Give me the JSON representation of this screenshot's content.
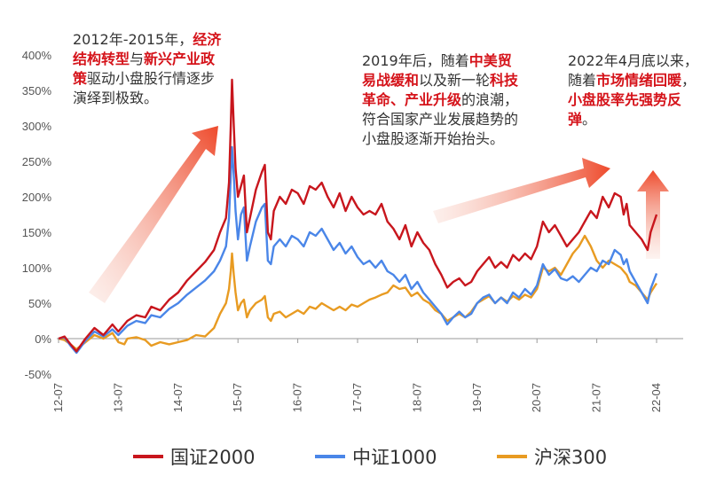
{
  "chart_data": {
    "type": "line",
    "y_ticks": [
      "400%",
      "350%",
      "300%",
      "250%",
      "200%",
      "150%",
      "100%",
      "50%",
      "0%",
      "-50%"
    ],
    "ylim": [
      -50,
      400
    ],
    "x_ticks": [
      "12-07",
      "13-07",
      "14-07",
      "15-07",
      "16-07",
      "17-07",
      "18-07",
      "19-07",
      "20-07",
      "21-07",
      "22-04"
    ],
    "legend_placement": "bottom",
    "series": [
      {
        "name": "国证2000",
        "color": "#c8161d",
        "points": [
          [
            0,
            0
          ],
          [
            0.1,
            3
          ],
          [
            0.2,
            -8
          ],
          [
            0.3,
            -18
          ],
          [
            0.45,
            0
          ],
          [
            0.6,
            15
          ],
          [
            0.75,
            5
          ],
          [
            0.9,
            20
          ],
          [
            1.0,
            10
          ],
          [
            1.15,
            25
          ],
          [
            1.3,
            33
          ],
          [
            1.45,
            30
          ],
          [
            1.55,
            45
          ],
          [
            1.7,
            40
          ],
          [
            1.85,
            55
          ],
          [
            2.0,
            65
          ],
          [
            2.15,
            82
          ],
          [
            2.3,
            95
          ],
          [
            2.45,
            108
          ],
          [
            2.6,
            125
          ],
          [
            2.7,
            150
          ],
          [
            2.8,
            170
          ],
          [
            2.85,
            220
          ],
          [
            2.88,
            300
          ],
          [
            2.9,
            365
          ],
          [
            2.93,
            300
          ],
          [
            2.96,
            240
          ],
          [
            3.0,
            200
          ],
          [
            3.05,
            215
          ],
          [
            3.1,
            230
          ],
          [
            3.15,
            150
          ],
          [
            3.2,
            170
          ],
          [
            3.3,
            210
          ],
          [
            3.4,
            235
          ],
          [
            3.45,
            245
          ],
          [
            3.5,
            150
          ],
          [
            3.55,
            140
          ],
          [
            3.6,
            180
          ],
          [
            3.7,
            200
          ],
          [
            3.8,
            190
          ],
          [
            3.9,
            210
          ],
          [
            4.0,
            205
          ],
          [
            4.1,
            190
          ],
          [
            4.2,
            215
          ],
          [
            4.3,
            210
          ],
          [
            4.4,
            220
          ],
          [
            4.5,
            200
          ],
          [
            4.6,
            185
          ],
          [
            4.7,
            205
          ],
          [
            4.8,
            180
          ],
          [
            4.9,
            200
          ],
          [
            5.0,
            185
          ],
          [
            5.1,
            175
          ],
          [
            5.2,
            180
          ],
          [
            5.3,
            175
          ],
          [
            5.4,
            190
          ],
          [
            5.5,
            165
          ],
          [
            5.6,
            155
          ],
          [
            5.7,
            140
          ],
          [
            5.8,
            160
          ],
          [
            5.9,
            130
          ],
          [
            6.0,
            150
          ],
          [
            6.1,
            135
          ],
          [
            6.2,
            125
          ],
          [
            6.3,
            105
          ],
          [
            6.4,
            90
          ],
          [
            6.5,
            72
          ],
          [
            6.6,
            80
          ],
          [
            6.7,
            85
          ],
          [
            6.8,
            75
          ],
          [
            6.9,
            80
          ],
          [
            7.0,
            95
          ],
          [
            7.1,
            105
          ],
          [
            7.2,
            115
          ],
          [
            7.3,
            100
          ],
          [
            7.4,
            108
          ],
          [
            7.5,
            100
          ],
          [
            7.6,
            118
          ],
          [
            7.7,
            110
          ],
          [
            7.8,
            120
          ],
          [
            7.9,
            112
          ],
          [
            8.0,
            130
          ],
          [
            8.1,
            165
          ],
          [
            8.2,
            150
          ],
          [
            8.3,
            160
          ],
          [
            8.4,
            145
          ],
          [
            8.5,
            130
          ],
          [
            8.6,
            140
          ],
          [
            8.7,
            150
          ],
          [
            8.8,
            165
          ],
          [
            8.9,
            180
          ],
          [
            9.0,
            170
          ],
          [
            9.1,
            200
          ],
          [
            9.2,
            185
          ],
          [
            9.3,
            205
          ],
          [
            9.4,
            200
          ],
          [
            9.45,
            175
          ],
          [
            9.5,
            190
          ],
          [
            9.55,
            160
          ],
          [
            9.65,
            150
          ],
          [
            9.75,
            140
          ],
          [
            9.85,
            125
          ],
          [
            9.9,
            150
          ],
          [
            10.0,
            175
          ]
        ]
      },
      {
        "name": "中证1000",
        "color": "#4a86e8",
        "points": [
          [
            0,
            0
          ],
          [
            0.1,
            2
          ],
          [
            0.2,
            -10
          ],
          [
            0.3,
            -20
          ],
          [
            0.45,
            -3
          ],
          [
            0.6,
            10
          ],
          [
            0.75,
            3
          ],
          [
            0.9,
            13
          ],
          [
            1.0,
            5
          ],
          [
            1.15,
            18
          ],
          [
            1.3,
            25
          ],
          [
            1.45,
            22
          ],
          [
            1.55,
            33
          ],
          [
            1.7,
            30
          ],
          [
            1.85,
            42
          ],
          [
            2.0,
            50
          ],
          [
            2.15,
            62
          ],
          [
            2.3,
            72
          ],
          [
            2.45,
            82
          ],
          [
            2.6,
            95
          ],
          [
            2.7,
            110
          ],
          [
            2.8,
            130
          ],
          [
            2.85,
            170
          ],
          [
            2.88,
            230
          ],
          [
            2.9,
            270
          ],
          [
            2.93,
            230
          ],
          [
            2.96,
            180
          ],
          [
            3.0,
            140
          ],
          [
            3.05,
            175
          ],
          [
            3.1,
            185
          ],
          [
            3.15,
            110
          ],
          [
            3.2,
            130
          ],
          [
            3.3,
            165
          ],
          [
            3.4,
            185
          ],
          [
            3.45,
            190
          ],
          [
            3.5,
            110
          ],
          [
            3.55,
            105
          ],
          [
            3.6,
            130
          ],
          [
            3.7,
            140
          ],
          [
            3.8,
            130
          ],
          [
            3.9,
            145
          ],
          [
            4.0,
            140
          ],
          [
            4.1,
            130
          ],
          [
            4.2,
            150
          ],
          [
            4.3,
            145
          ],
          [
            4.4,
            155
          ],
          [
            4.5,
            140
          ],
          [
            4.6,
            125
          ],
          [
            4.7,
            135
          ],
          [
            4.8,
            120
          ],
          [
            4.9,
            130
          ],
          [
            5.0,
            115
          ],
          [
            5.1,
            105
          ],
          [
            5.2,
            110
          ],
          [
            5.3,
            100
          ],
          [
            5.4,
            110
          ],
          [
            5.5,
            95
          ],
          [
            5.6,
            90
          ],
          [
            5.7,
            80
          ],
          [
            5.8,
            90
          ],
          [
            5.9,
            70
          ],
          [
            6.0,
            80
          ],
          [
            6.1,
            65
          ],
          [
            6.2,
            55
          ],
          [
            6.3,
            45
          ],
          [
            6.4,
            35
          ],
          [
            6.5,
            20
          ],
          [
            6.6,
            30
          ],
          [
            6.7,
            38
          ],
          [
            6.8,
            30
          ],
          [
            6.9,
            35
          ],
          [
            7.0,
            50
          ],
          [
            7.1,
            58
          ],
          [
            7.2,
            62
          ],
          [
            7.3,
            50
          ],
          [
            7.4,
            58
          ],
          [
            7.5,
            50
          ],
          [
            7.6,
            65
          ],
          [
            7.7,
            58
          ],
          [
            7.8,
            70
          ],
          [
            7.9,
            62
          ],
          [
            8.0,
            75
          ],
          [
            8.1,
            105
          ],
          [
            8.2,
            90
          ],
          [
            8.3,
            98
          ],
          [
            8.4,
            85
          ],
          [
            8.5,
            82
          ],
          [
            8.6,
            88
          ],
          [
            8.7,
            80
          ],
          [
            8.8,
            90
          ],
          [
            8.9,
            100
          ],
          [
            9.0,
            95
          ],
          [
            9.1,
            110
          ],
          [
            9.2,
            105
          ],
          [
            9.3,
            125
          ],
          [
            9.4,
            118
          ],
          [
            9.45,
            105
          ],
          [
            9.5,
            112
          ],
          [
            9.55,
            95
          ],
          [
            9.65,
            80
          ],
          [
            9.75,
            65
          ],
          [
            9.85,
            50
          ],
          [
            9.9,
            70
          ],
          [
            10.0,
            92
          ]
        ]
      },
      {
        "name": "沪深300",
        "color": "#e89b22",
        "points": [
          [
            0,
            0
          ],
          [
            0.1,
            -2
          ],
          [
            0.2,
            -8
          ],
          [
            0.3,
            -15
          ],
          [
            0.45,
            -5
          ],
          [
            0.6,
            5
          ],
          [
            0.75,
            0
          ],
          [
            0.9,
            8
          ],
          [
            1.0,
            -5
          ],
          [
            1.1,
            -8
          ],
          [
            1.15,
            0
          ],
          [
            1.3,
            2
          ],
          [
            1.45,
            -2
          ],
          [
            1.55,
            -10
          ],
          [
            1.7,
            -5
          ],
          [
            1.85,
            -8
          ],
          [
            2.0,
            -5
          ],
          [
            2.15,
            -2
          ],
          [
            2.3,
            5
          ],
          [
            2.45,
            3
          ],
          [
            2.6,
            15
          ],
          [
            2.7,
            35
          ],
          [
            2.8,
            50
          ],
          [
            2.85,
            70
          ],
          [
            2.88,
            95
          ],
          [
            2.9,
            120
          ],
          [
            2.93,
            90
          ],
          [
            2.96,
            65
          ],
          [
            3.0,
            40
          ],
          [
            3.05,
            50
          ],
          [
            3.1,
            55
          ],
          [
            3.15,
            30
          ],
          [
            3.2,
            40
          ],
          [
            3.3,
            50
          ],
          [
            3.4,
            55
          ],
          [
            3.45,
            60
          ],
          [
            3.5,
            30
          ],
          [
            3.55,
            25
          ],
          [
            3.6,
            35
          ],
          [
            3.7,
            38
          ],
          [
            3.8,
            30
          ],
          [
            3.9,
            35
          ],
          [
            4.0,
            40
          ],
          [
            4.1,
            35
          ],
          [
            4.2,
            45
          ],
          [
            4.3,
            42
          ],
          [
            4.4,
            50
          ],
          [
            4.5,
            45
          ],
          [
            4.6,
            40
          ],
          [
            4.7,
            45
          ],
          [
            4.8,
            40
          ],
          [
            4.9,
            48
          ],
          [
            5.0,
            45
          ],
          [
            5.1,
            50
          ],
          [
            5.2,
            55
          ],
          [
            5.3,
            58
          ],
          [
            5.4,
            62
          ],
          [
            5.5,
            65
          ],
          [
            5.6,
            75
          ],
          [
            5.7,
            70
          ],
          [
            5.8,
            72
          ],
          [
            5.9,
            60
          ],
          [
            6.0,
            65
          ],
          [
            6.1,
            55
          ],
          [
            6.2,
            50
          ],
          [
            6.3,
            40
          ],
          [
            6.4,
            35
          ],
          [
            6.5,
            25
          ],
          [
            6.6,
            30
          ],
          [
            6.7,
            35
          ],
          [
            6.8,
            30
          ],
          [
            6.9,
            38
          ],
          [
            7.0,
            50
          ],
          [
            7.1,
            55
          ],
          [
            7.2,
            60
          ],
          [
            7.3,
            50
          ],
          [
            7.4,
            58
          ],
          [
            7.5,
            52
          ],
          [
            7.6,
            60
          ],
          [
            7.7,
            55
          ],
          [
            7.8,
            62
          ],
          [
            7.9,
            58
          ],
          [
            8.0,
            70
          ],
          [
            8.1,
            100
          ],
          [
            8.2,
            95
          ],
          [
            8.3,
            100
          ],
          [
            8.4,
            90
          ],
          [
            8.5,
            105
          ],
          [
            8.6,
            120
          ],
          [
            8.7,
            130
          ],
          [
            8.8,
            145
          ],
          [
            8.9,
            130
          ],
          [
            9.0,
            110
          ],
          [
            9.1,
            100
          ],
          [
            9.2,
            110
          ],
          [
            9.3,
            105
          ],
          [
            9.4,
            100
          ],
          [
            9.45,
            95
          ],
          [
            9.5,
            90
          ],
          [
            9.55,
            80
          ],
          [
            9.65,
            75
          ],
          [
            9.75,
            65
          ],
          [
            9.85,
            55
          ],
          [
            9.9,
            65
          ],
          [
            10.0,
            78
          ]
        ]
      }
    ]
  },
  "annotations": {
    "a1": {
      "pre1": "2012年-2015年，",
      "hl1": "经济结构转型",
      "mid1": "与",
      "hl2": "新兴产业政策",
      "post1": "驱动小盘股行情逐步演绎到极致。"
    },
    "a2": {
      "pre1": "2019年后，随着",
      "hl1": "中美贸易战缓和",
      "mid1": "以及新一轮",
      "hl2": "科技革命、产业升级",
      "post1": "的浪潮，符合国家产业发展趋势的小盘股逐渐开始抬头。"
    },
    "a3": {
      "pre1": "2022年4月底以来，随着",
      "hl1": "市场情绪回暖",
      "mid1": "，",
      "hl2": "小盘股率先强势反弹",
      "post1": "。"
    }
  },
  "legend": [
    {
      "label": "国证2000",
      "color": "#c8161d"
    },
    {
      "label": "中证1000",
      "color": "#4a86e8"
    },
    {
      "label": "沪深300",
      "color": "#e89b22"
    }
  ]
}
